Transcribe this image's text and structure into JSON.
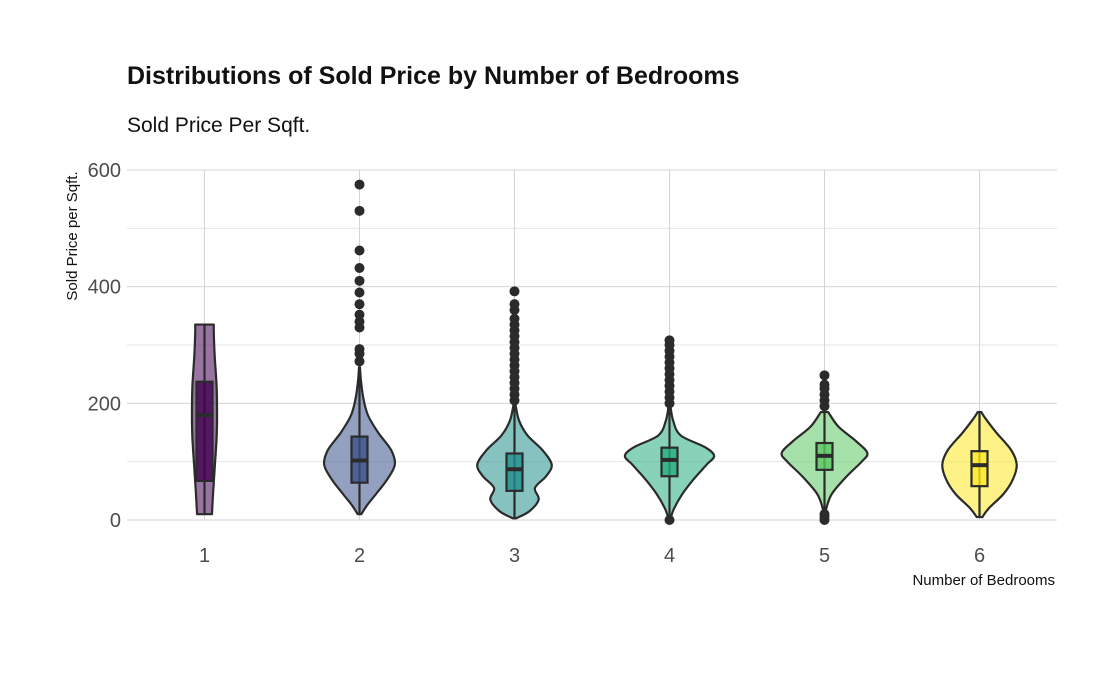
{
  "chart_data": {
    "type": "violin",
    "title": "Distributions of Sold Price by Number of Bedrooms",
    "subtitle": "Sold Price Per Sqft.",
    "xlabel": "Number of Bedrooms",
    "ylabel": "Sold Price per Sqft.",
    "ylim": [
      0,
      600
    ],
    "yticks": [
      0,
      200,
      400,
      600
    ],
    "grid": true,
    "legend": "none",
    "categories": [
      "1",
      "2",
      "3",
      "4",
      "5",
      "6"
    ],
    "series": [
      {
        "category": "1",
        "color": "#440154",
        "range": [
          10,
          335
        ],
        "box": {
          "q1": 67,
          "median": 180,
          "q3": 237,
          "lower_whisker": 10,
          "upper_whisker": 335
        },
        "outliers": [],
        "density": [
          [
            10,
            0.08
          ],
          [
            40,
            0.09
          ],
          [
            90,
            0.11
          ],
          [
            140,
            0.13
          ],
          [
            180,
            0.135
          ],
          [
            230,
            0.13
          ],
          [
            280,
            0.11
          ],
          [
            320,
            0.1
          ],
          [
            335,
            0.1
          ]
        ]
      },
      {
        "category": "2",
        "color": "#3b528b",
        "range": [
          10,
          575
        ],
        "box": {
          "q1": 64,
          "median": 102,
          "q3": 143,
          "lower_whisker": 10,
          "upper_whisker": 262
        },
        "outliers": [
          272,
          285,
          293,
          330,
          340,
          352,
          370,
          390,
          410,
          432,
          462,
          530,
          575
        ],
        "density": [
          [
            10,
            0.02
          ],
          [
            25,
            0.08
          ],
          [
            45,
            0.18
          ],
          [
            70,
            0.3
          ],
          [
            95,
            0.38
          ],
          [
            120,
            0.34
          ],
          [
            150,
            0.2
          ],
          [
            180,
            0.09
          ],
          [
            210,
            0.04
          ],
          [
            240,
            0.015
          ],
          [
            262,
            0.005
          ]
        ]
      },
      {
        "category": "3",
        "color": "#21908c",
        "range": [
          3,
          392
        ],
        "box": {
          "q1": 50,
          "median": 87,
          "q3": 114,
          "lower_whisker": 3,
          "upper_whisker": 198
        },
        "outliers": [
          205,
          215,
          225,
          235,
          245,
          255,
          265,
          275,
          285,
          295,
          305,
          315,
          325,
          335,
          345,
          360,
          370,
          392
        ],
        "density": [
          [
            3,
            0.02
          ],
          [
            15,
            0.16
          ],
          [
            35,
            0.26
          ],
          [
            55,
            0.22
          ],
          [
            75,
            0.34
          ],
          [
            95,
            0.4
          ],
          [
            120,
            0.3
          ],
          [
            145,
            0.14
          ],
          [
            170,
            0.05
          ],
          [
            198,
            0.01
          ]
        ]
      },
      {
        "category": "4",
        "color": "#27ad81",
        "range": [
          0,
          308
        ],
        "box": {
          "q1": 75,
          "median": 103,
          "q3": 124,
          "lower_whisker": 0,
          "upper_whisker": 195
        },
        "outliers": [
          0,
          200,
          210,
          220,
          230,
          240,
          250,
          260,
          270,
          280,
          290,
          300,
          308
        ],
        "density": [
          [
            0,
            0.005
          ],
          [
            20,
            0.05
          ],
          [
            45,
            0.14
          ],
          [
            70,
            0.26
          ],
          [
            95,
            0.4
          ],
          [
            110,
            0.48
          ],
          [
            125,
            0.38
          ],
          [
            145,
            0.12
          ],
          [
            170,
            0.04
          ],
          [
            195,
            0.01
          ]
        ]
      },
      {
        "category": "5",
        "color": "#5dc863",
        "range": [
          0,
          248
        ],
        "box": {
          "q1": 86,
          "median": 110,
          "q3": 132,
          "lower_whisker": 10,
          "upper_whisker": 185
        },
        "outliers": [
          0,
          5,
          10,
          195,
          205,
          215,
          225,
          232,
          248
        ],
        "density": [
          [
            0,
            0.005
          ],
          [
            20,
            0.02
          ],
          [
            45,
            0.08
          ],
          [
            75,
            0.24
          ],
          [
            100,
            0.4
          ],
          [
            115,
            0.46
          ],
          [
            135,
            0.34
          ],
          [
            160,
            0.15
          ],
          [
            185,
            0.04
          ]
        ]
      },
      {
        "category": "6",
        "color": "#fde725",
        "range": [
          5,
          185
        ],
        "box": {
          "q1": 58,
          "median": 94,
          "q3": 118,
          "lower_whisker": 5,
          "upper_whisker": 185
        },
        "outliers": [],
        "density": [
          [
            5,
            0.03
          ],
          [
            20,
            0.1
          ],
          [
            45,
            0.26
          ],
          [
            70,
            0.36
          ],
          [
            95,
            0.4
          ],
          [
            120,
            0.34
          ],
          [
            150,
            0.18
          ],
          [
            175,
            0.06
          ],
          [
            185,
            0.02
          ]
        ]
      }
    ]
  }
}
